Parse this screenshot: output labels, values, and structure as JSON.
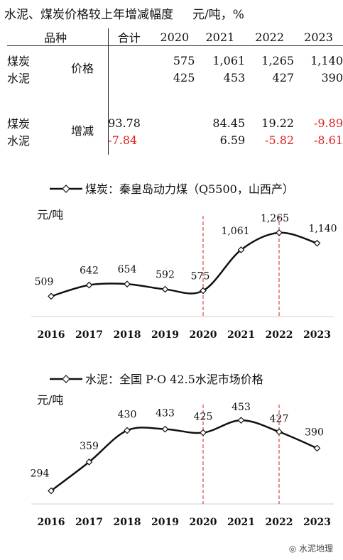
{
  "title": "水泥、煤炭价格较上年增减幅度",
  "unit": "元/吨，%",
  "table": {
    "headers": [
      "品种",
      "合计",
      "2020",
      "2021",
      "2022",
      "2023"
    ],
    "price_label": "价格",
    "change_label": "增减",
    "price_rows": [
      {
        "name": "煤炭",
        "total": "",
        "values": [
          "575",
          "1,061",
          "1,265",
          "1,140"
        ]
      },
      {
        "name": "水泥",
        "total": "",
        "values": [
          "425",
          "453",
          "427",
          "390"
        ]
      }
    ],
    "change_rows": [
      {
        "name": "煤炭",
        "total": "93.78",
        "values": [
          "",
          "84.45",
          "19.22",
          "-9.89"
        ]
      },
      {
        "name": "水泥",
        "total": "-7.84",
        "values": [
          "",
          "6.59",
          "-5.82",
          "-8.61"
        ]
      }
    ]
  },
  "colors": {
    "negative": "#e02020",
    "line": "#111111",
    "reference_line": "#cc2222"
  },
  "watermark": "水泥地理",
  "chart_data": [
    {
      "type": "line",
      "legend": "煤炭：秦皇岛动力煤（Q5500，山西产）",
      "ylabel": "元/吨",
      "x": [
        "2016",
        "2017",
        "2018",
        "2019",
        "2020",
        "2021",
        "2022",
        "2023"
      ],
      "values": [
        509,
        642,
        654,
        592,
        575,
        1061,
        1265,
        1140
      ],
      "labels": [
        "509",
        "642",
        "654",
        "592",
        "575",
        "1,061",
        "1,265",
        "1,140"
      ],
      "reference_lines": [
        "2020",
        "2022"
      ],
      "ylim": [
        200,
        1500
      ]
    },
    {
      "type": "line",
      "legend": "水泥：全国 P·O 42.5水泥市场价格",
      "ylabel": "元/吨",
      "x": [
        "2016",
        "2017",
        "2018",
        "2019",
        "2020",
        "2021",
        "2022",
        "2023"
      ],
      "values": [
        294,
        359,
        430,
        433,
        425,
        453,
        427,
        390
      ],
      "labels": [
        "294",
        "359",
        "430",
        "433",
        "425",
        "453",
        "427",
        "390"
      ],
      "reference_lines": [
        "2020",
        "2022"
      ],
      "ylim": [
        250,
        490
      ]
    }
  ]
}
